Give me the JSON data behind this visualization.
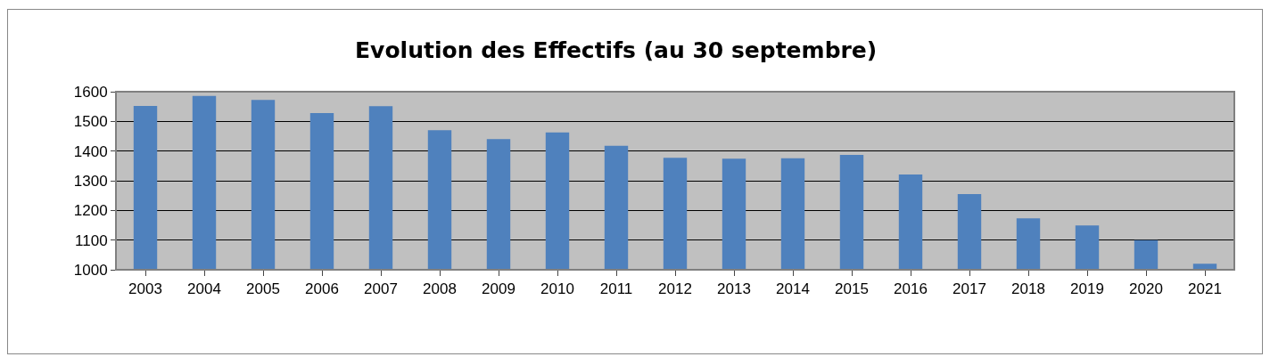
{
  "chart_data": {
    "type": "bar",
    "title": "Evolution des Effectifs (au 30 septembre)",
    "categories": [
      "2003",
      "2004",
      "2005",
      "2006",
      "2007",
      "2008",
      "2009",
      "2010",
      "2011",
      "2012",
      "2013",
      "2014",
      "2015",
      "2016",
      "2017",
      "2018",
      "2019",
      "2020",
      "2021"
    ],
    "values": [
      1552,
      1586,
      1572,
      1528,
      1551,
      1470,
      1440,
      1463,
      1418,
      1377,
      1374,
      1376,
      1387,
      1321,
      1255,
      1173,
      1149,
      1100,
      1020
    ],
    "color": "#4f81bd",
    "ylim": [
      1000,
      1600
    ],
    "yticks": [
      1000,
      1100,
      1200,
      1300,
      1400,
      1500,
      1600
    ],
    "grid": "y"
  }
}
